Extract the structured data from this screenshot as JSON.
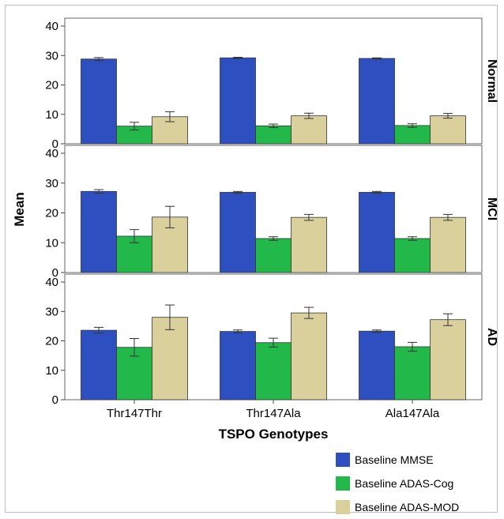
{
  "chart_data": {
    "type": "bar",
    "xlabel": "TSPO Genotypes",
    "ylabel": "Mean",
    "categories": [
      "Thr147Thr",
      "Thr147Ala",
      "Ala147Ala"
    ],
    "ylim": [
      0,
      40
    ],
    "yticks": [
      0,
      10,
      20,
      30,
      40
    ],
    "grid": false,
    "legend_position": "bottom-right",
    "series_names": [
      "Baseline MMSE",
      "Baseline ADAS-Cog",
      "Baseline ADAS-MOD"
    ],
    "series_colors": [
      "#2e4fc0",
      "#22b94a",
      "#d9d09c"
    ],
    "panels": [
      {
        "label": "Normal",
        "series": [
          {
            "name": "Baseline MMSE",
            "values": [
              28.8,
              29.2,
              29.0
            ],
            "errors": [
              0.5,
              0.2,
              0.2
            ]
          },
          {
            "name": "Baseline ADAS-Cog",
            "values": [
              6.0,
              6.1,
              6.2
            ],
            "errors": [
              1.3,
              0.6,
              0.6
            ]
          },
          {
            "name": "Baseline ADAS-MOD",
            "values": [
              9.2,
              9.5,
              9.5
            ],
            "errors": [
              1.7,
              0.9,
              0.8
            ]
          }
        ]
      },
      {
        "label": "MCI",
        "series": [
          {
            "name": "Baseline MMSE",
            "values": [
              27.2,
              26.9,
              26.9
            ],
            "errors": [
              0.6,
              0.3,
              0.3
            ]
          },
          {
            "name": "Baseline ADAS-Cog",
            "values": [
              12.2,
              11.4,
              11.4
            ],
            "errors": [
              2.2,
              0.6,
              0.6
            ]
          },
          {
            "name": "Baseline ADAS-MOD",
            "values": [
              18.6,
              18.5,
              18.5
            ],
            "errors": [
              3.6,
              1.0,
              1.0
            ]
          }
        ]
      },
      {
        "label": "AD",
        "series": [
          {
            "name": "Baseline MMSE",
            "values": [
              23.6,
              23.2,
              23.3
            ],
            "errors": [
              1.0,
              0.5,
              0.4
            ]
          },
          {
            "name": "Baseline ADAS-Cog",
            "values": [
              17.8,
              19.4,
              18.0
            ],
            "errors": [
              3.0,
              1.5,
              1.5
            ]
          },
          {
            "name": "Baseline ADAS-MOD",
            "values": [
              28.0,
              29.5,
              27.2
            ],
            "errors": [
              4.2,
              1.9,
              2.0
            ]
          }
        ]
      }
    ]
  }
}
